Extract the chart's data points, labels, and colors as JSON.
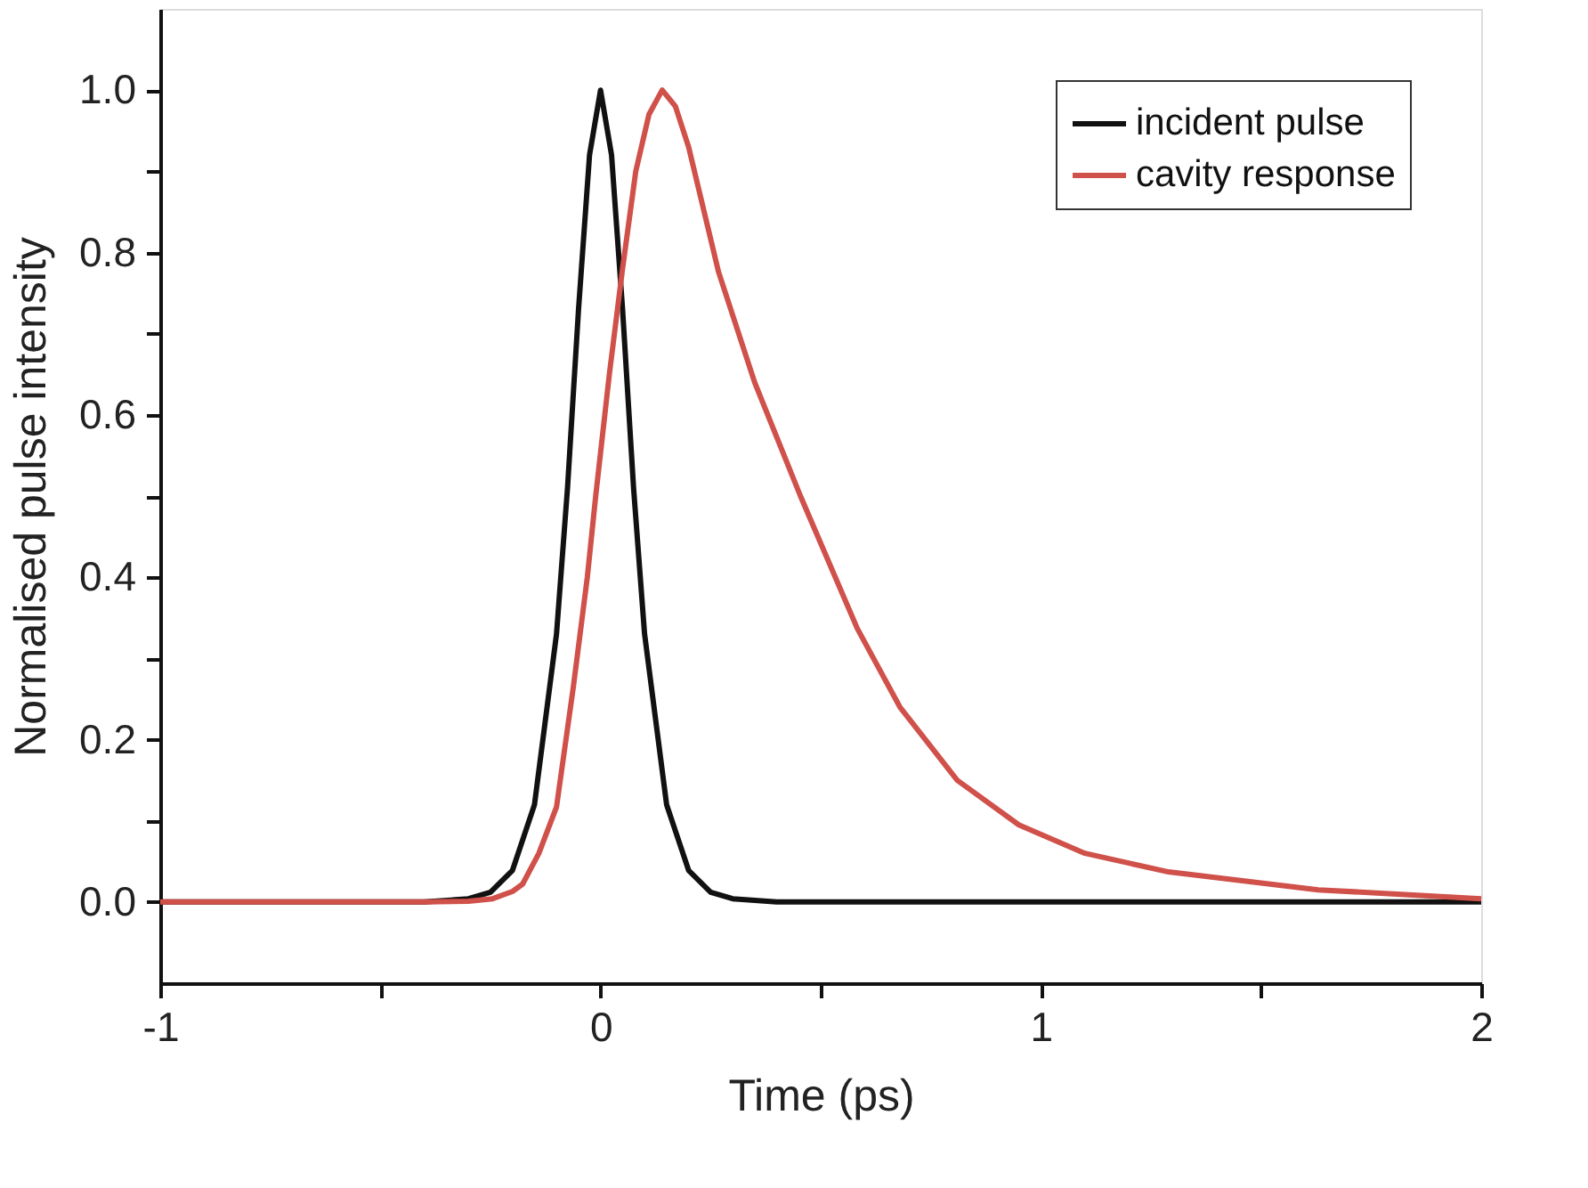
{
  "chart_data": {
    "type": "line",
    "xlabel": "Time (ps)",
    "ylabel": "Normalised pulse intensity",
    "xlim": [
      -1,
      2
    ],
    "ylim": [
      -0.1,
      1.1
    ],
    "xticks": [
      -1,
      {
        "value": -0.5,
        "label": null
      },
      0,
      {
        "value": 0.5,
        "label": null
      },
      1,
      {
        "value": 1.5,
        "label": null
      },
      2
    ],
    "yticks": [
      {
        "value": 0,
        "label": "0.0"
      },
      {
        "value": 0.1,
        "label": null
      },
      {
        "value": 0.2,
        "label": "0.2"
      },
      {
        "value": 0.3,
        "label": null
      },
      {
        "value": 0.4,
        "label": "0.4"
      },
      {
        "value": 0.5,
        "label": null
      },
      {
        "value": 0.6,
        "label": "0.6"
      },
      {
        "value": 0.7,
        "label": null
      },
      {
        "value": 0.8,
        "label": "0.8"
      },
      {
        "value": 0.9,
        "label": null
      },
      {
        "value": 1.0,
        "label": "1.0"
      }
    ],
    "grid": false,
    "legend": "top right",
    "marker": "none",
    "line_style": "solid",
    "series": [
      {
        "name": "incident pulse",
        "color": "#111111",
        "x": [
          -1,
          -0.4,
          -0.3,
          -0.25,
          -0.2,
          -0.15,
          -0.1,
          -0.075,
          -0.05,
          -0.025,
          0,
          0.025,
          0.05,
          0.075,
          0.1,
          0.15,
          0.2,
          0.25,
          0.3,
          0.4,
          2
        ],
        "values": [
          0,
          0,
          0.004,
          0.012,
          0.039,
          0.12,
          0.33,
          0.51,
          0.73,
          0.92,
          1.0,
          0.92,
          0.73,
          0.51,
          0.33,
          0.12,
          0.039,
          0.012,
          0.004,
          0,
          0
        ]
      },
      {
        "name": "cavity response",
        "color": "#d0504a",
        "x": [
          -1,
          -0.4,
          -0.3,
          -0.245,
          -0.2,
          -0.177,
          -0.14,
          -0.1,
          -0.062,
          -0.03,
          -0.011,
          0.02,
          0.05,
          0.08,
          0.11,
          0.14,
          0.17,
          0.2,
          0.268,
          0.35,
          0.454,
          0.583,
          0.68,
          0.81,
          0.95,
          1.1,
          1.29,
          1.63,
          2
        ],
        "values": [
          0,
          0,
          0.001,
          0.004,
          0.013,
          0.022,
          0.06,
          0.117,
          0.264,
          0.4,
          0.5,
          0.65,
          0.78,
          0.9,
          0.97,
          1.0,
          0.98,
          0.93,
          0.776,
          0.64,
          0.5,
          0.337,
          0.24,
          0.15,
          0.095,
          0.06,
          0.037,
          0.015,
          0.004
        ]
      }
    ]
  }
}
